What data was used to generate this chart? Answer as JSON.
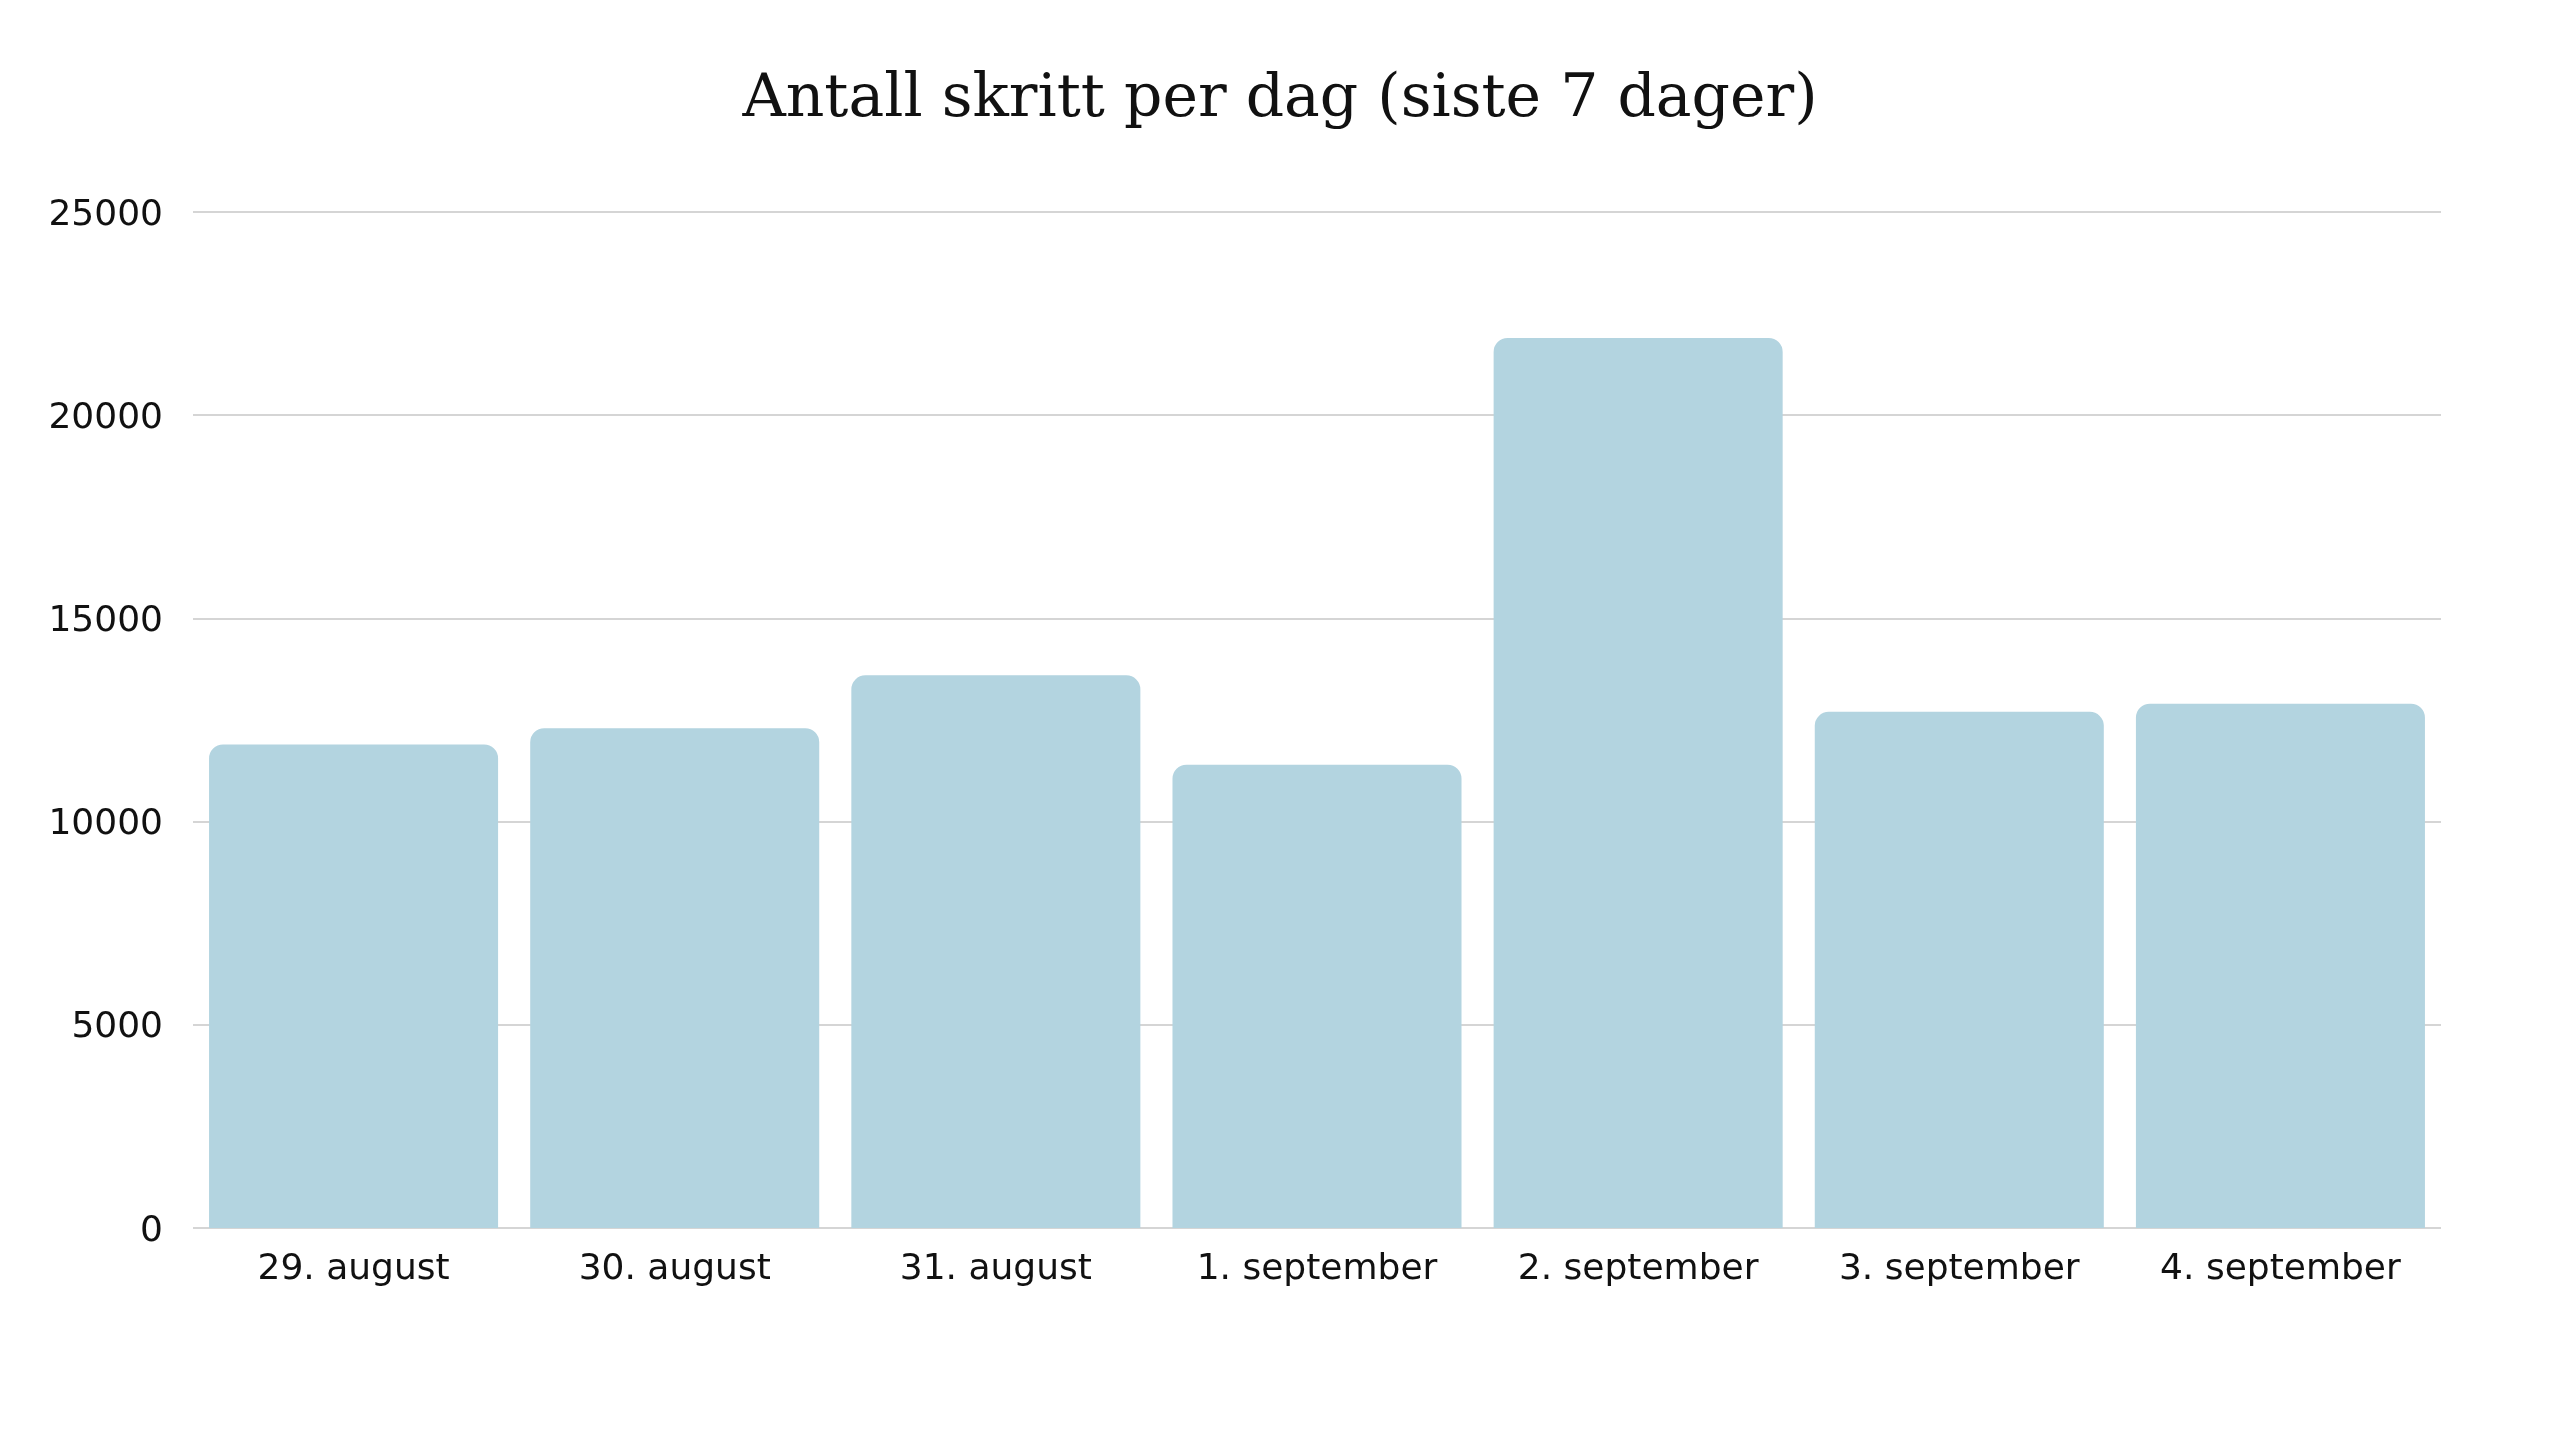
{
  "chart_data": {
    "type": "bar",
    "title": "Antall skritt per dag (siste 7 dager)",
    "categories": [
      "29. august",
      "30. august",
      "31. august",
      "1. september",
      "2. september",
      "3. september",
      "4. september"
    ],
    "values": [
      11900,
      12300,
      13600,
      11400,
      21900,
      12700,
      12900
    ],
    "color": "#b3d4e0",
    "ylim": [
      0,
      25000
    ],
    "yticks": [
      0,
      5000,
      10000,
      15000,
      20000,
      25000
    ],
    "grid": "y"
  }
}
